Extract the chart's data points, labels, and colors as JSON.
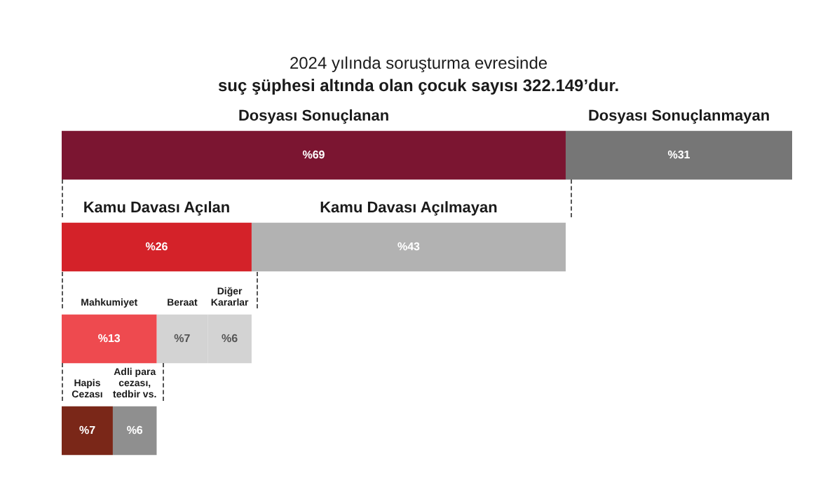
{
  "chart_data": {
    "type": "bar",
    "orientation": "horizontal",
    "stacked": true,
    "title": "2024 yılında soruşturma evresinde",
    "subtitle": "suç şüphesi altında olan çocuk sayısı 322.149’dur.",
    "categories": [
      null,
      null,
      null,
      null
    ],
    "series": [
      {
        "colors": [
          "#7b1531",
          "#d42229",
          "#ee4a4f",
          "#7a2718"
        ],
        "values": [
          69,
          26,
          13,
          7
        ],
        "value_labels": [
          "%69",
          "%26",
          "%13",
          "%7"
        ]
      },
      {
        "colors": [
          "#767676",
          "#b2b2b2",
          "#d3d3d3",
          "#8f8f8f"
        ],
        "values": [
          31,
          43,
          7,
          6
        ],
        "value_labels": [
          "%31",
          "%43",
          "%7",
          "%6"
        ]
      },
      {
        "colors": [
          null,
          null,
          "#d3d3d3",
          null
        ],
        "values": [
          null,
          null,
          6,
          null
        ],
        "value_labels": [
          null,
          null,
          "%6",
          null
        ]
      }
    ],
    "annotations": [
      "Dosyası Sonuçlanan",
      "Dosyası Sonuçlanmayan",
      "Kamu Davası Açılan",
      "Kamu Davası Açılmayan",
      "Mahkumiyet",
      "Beraat",
      "Diğer\nKararlar",
      "Hapis\nCezası",
      "Adli para\ncezası,\ntedbir vs."
    ],
    "legend": false
  }
}
